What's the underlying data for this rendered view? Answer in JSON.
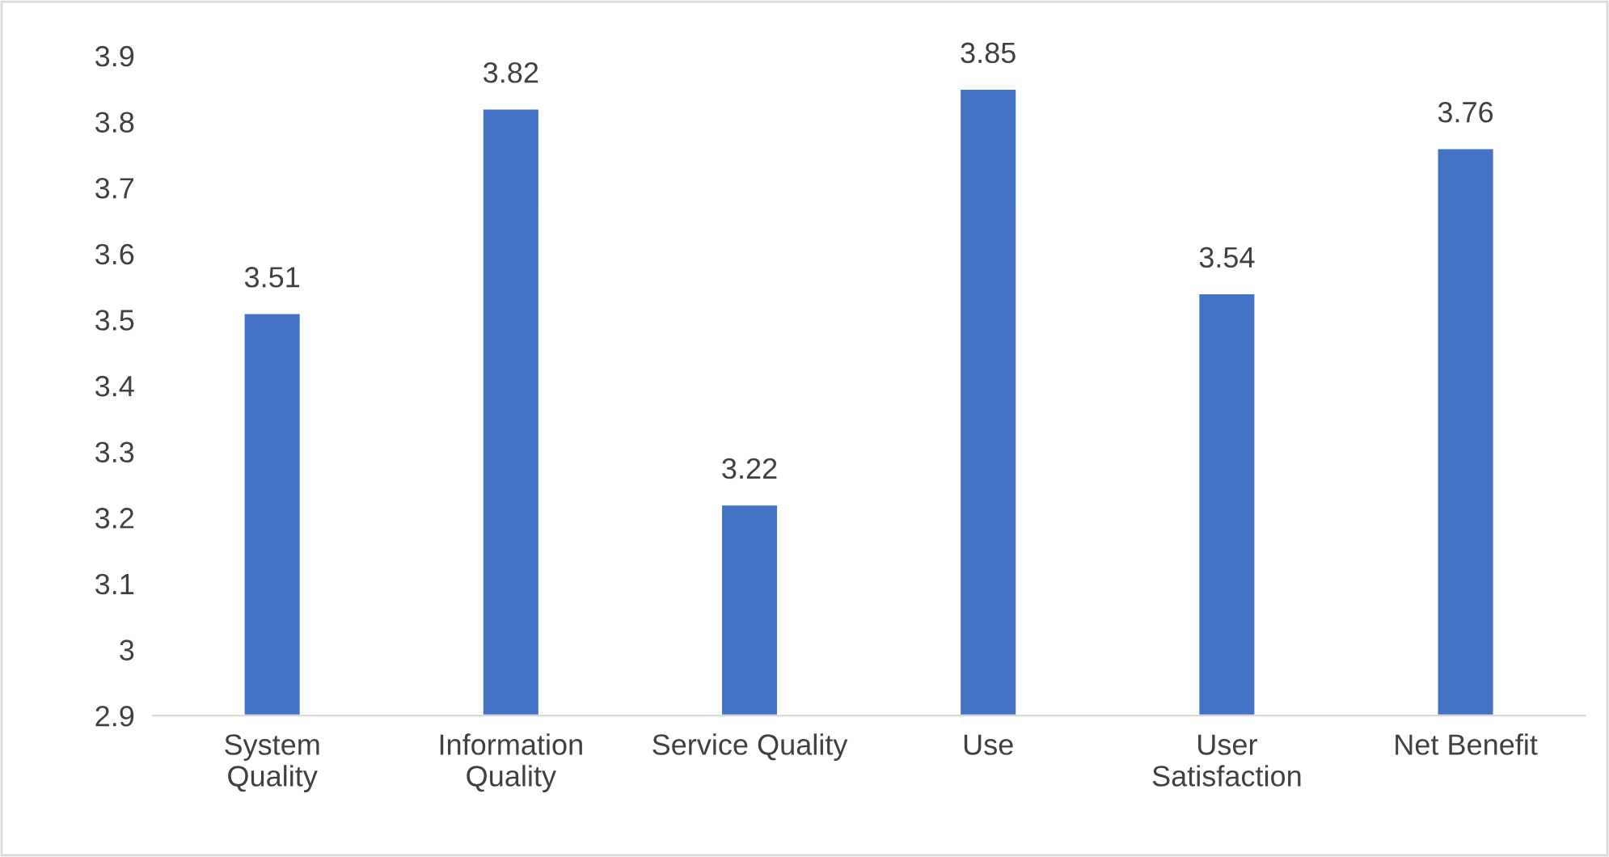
{
  "chart_data": {
    "type": "bar",
    "categories": [
      "System\nQuality",
      "Information\nQuality",
      "Service Quality",
      "Use",
      "User\nSatisfaction",
      "Net Benefit"
    ],
    "values": [
      3.51,
      3.82,
      3.22,
      3.85,
      3.54,
      3.76
    ],
    "color": "#4472c4",
    "ylim": [
      2.9,
      3.9
    ],
    "yticks": [
      2.9,
      3,
      3.1,
      3.2,
      3.3,
      3.4,
      3.5,
      3.6,
      3.7,
      3.8,
      3.9
    ],
    "data_labels": true,
    "grid": false
  }
}
